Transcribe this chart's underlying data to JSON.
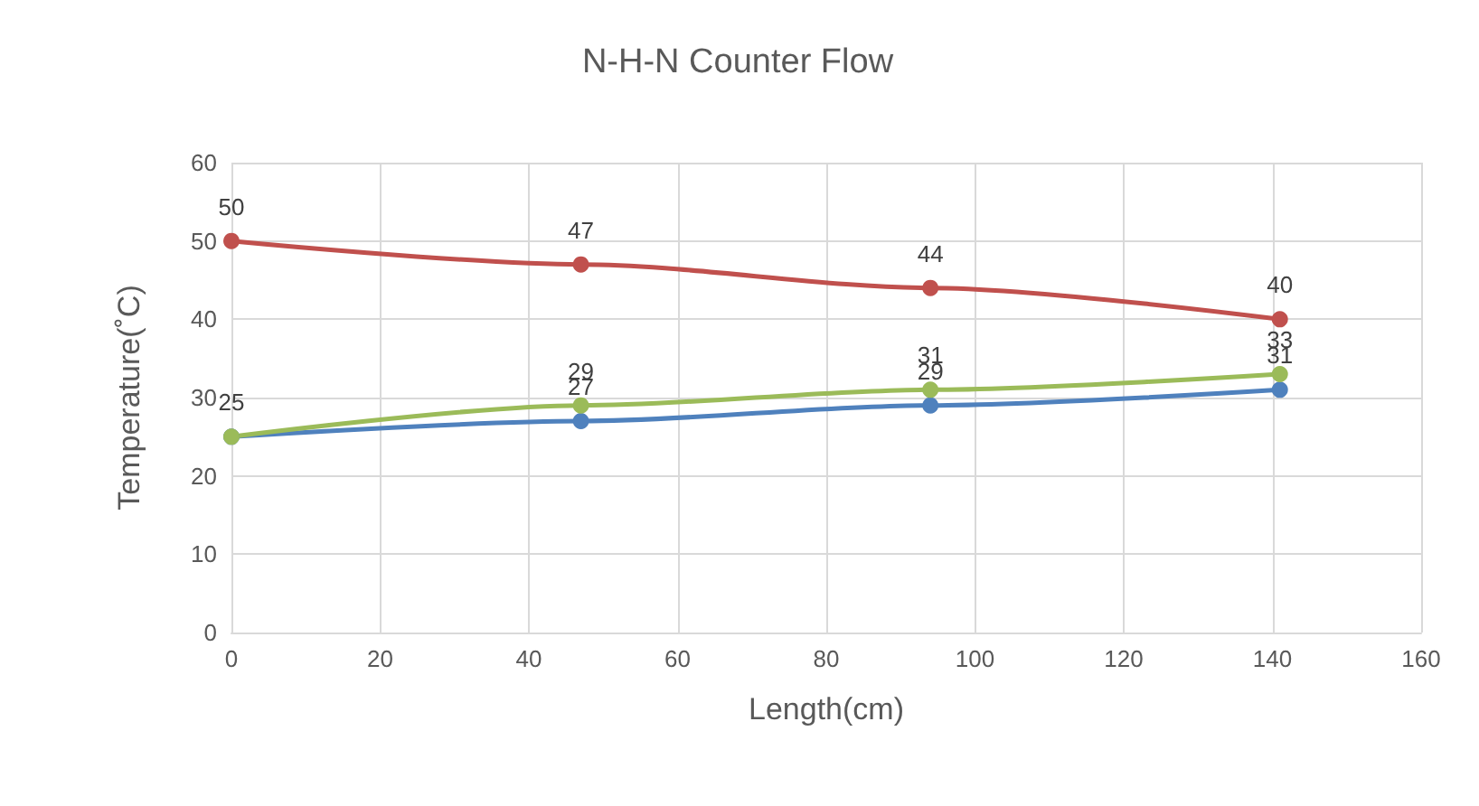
{
  "chart_data": {
    "type": "line",
    "title": "N-H-N Counter Flow",
    "xlabel": "Length(cm)",
    "ylabel": "Temperature(˚C)",
    "x": [
      0,
      47,
      94,
      141
    ],
    "series": [
      {
        "color": "#c0504d",
        "values": [
          50,
          47,
          44,
          40
        ],
        "value_labels": [
          "50",
          "47",
          "44",
          "40"
        ]
      },
      {
        "color": "#4f81bd",
        "values": [
          25,
          27,
          29,
          31
        ],
        "value_labels": [
          "25",
          "27",
          "29",
          "31"
        ]
      },
      {
        "color": "#9bbb59",
        "values": [
          25,
          29,
          31,
          33
        ],
        "value_labels": [
          null,
          "29",
          "31",
          "33"
        ]
      }
    ],
    "xlim": [
      0,
      160
    ],
    "xticks": [
      0,
      20,
      40,
      60,
      80,
      100,
      120,
      140,
      160
    ],
    "ylim": [
      0,
      60
    ],
    "yticks": [
      0,
      10,
      20,
      30,
      40,
      50,
      60
    ],
    "grid": true,
    "marker": "circle",
    "line_style": "solid"
  }
}
